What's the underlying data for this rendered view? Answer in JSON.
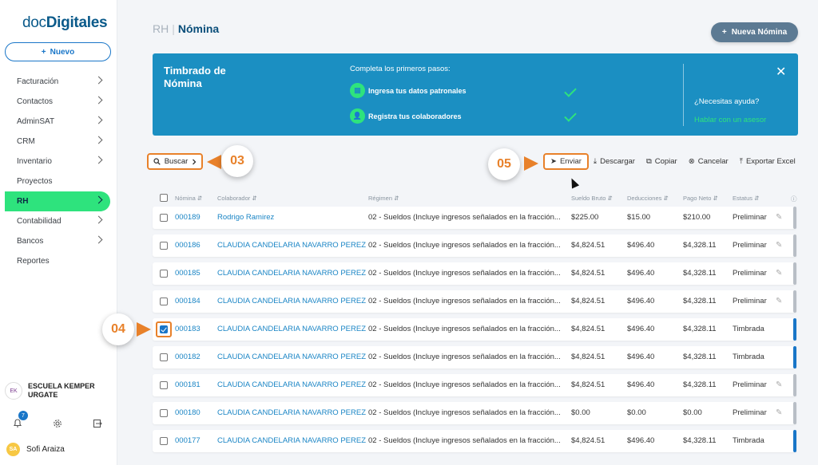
{
  "logo": {
    "part1": "doc",
    "part2": "Digitales"
  },
  "new_button": {
    "icon": "+",
    "label": "Nuevo"
  },
  "nav": [
    {
      "label": "Facturación",
      "chevron": true
    },
    {
      "label": "Contactos",
      "chevron": true
    },
    {
      "label": "AdminSAT",
      "chevron": true
    },
    {
      "label": "CRM",
      "chevron": true
    },
    {
      "label": "Inventario",
      "chevron": true
    },
    {
      "label": "Proyectos",
      "chevron": false
    },
    {
      "label": "RH",
      "chevron": true,
      "active": true
    },
    {
      "label": "Contabilidad",
      "chevron": true
    },
    {
      "label": "Bancos",
      "chevron": true
    },
    {
      "label": "Reportes",
      "chevron": false
    }
  ],
  "company": {
    "avatar": "EK",
    "name_line1": "ESCUELA KEMPER",
    "name_line2": "URGATE"
  },
  "notifications": {
    "count": "7"
  },
  "user": {
    "initials": "SA",
    "name": "Sofi Araiza"
  },
  "breadcrumb": {
    "root": "RH",
    "sep": "|",
    "current": "Nómina"
  },
  "nueva_button": {
    "icon": "+",
    "label": "Nueva Nómina"
  },
  "banner": {
    "title": "Timbrado de Nómina",
    "subtitle": "Completa los primeros pasos:",
    "steps": [
      {
        "label": "Ingresa tus datos patronales",
        "done": true
      },
      {
        "label": "Registra tus colaboradores",
        "done": true
      }
    ],
    "help_question": "¿Necesitas ayuda?",
    "help_link": "Hablar con un asesor",
    "close_icon": "✕"
  },
  "toolbar": {
    "search_label": "Buscar",
    "callout_03": "03",
    "callout_05": "05",
    "callout_04": "04",
    "actions": {
      "enviar": "Enviar",
      "descargar": "Descargar",
      "copiar": "Copiar",
      "cancelar": "Cancelar",
      "exportar": "Exportar Excel"
    }
  },
  "table": {
    "headers": {
      "nomina": "Nómina",
      "colaborador": "Colaborador",
      "regimen": "Régimen",
      "sueldo": "Sueldo Bruto",
      "deducciones": "Deducciones",
      "neto": "Pago Neto",
      "estatus": "Estatus"
    },
    "rows": [
      {
        "id": "000189",
        "colaborador": "Rodrigo Ramirez",
        "regimen": "02 - Sueldos (Incluye ingresos señalados en la fracción...",
        "sueldo": "$225.00",
        "deducciones": "$15.00",
        "neto": "$210.00",
        "estatus": "Preliminar",
        "checked": false
      },
      {
        "id": "000186",
        "colaborador": "CLAUDIA CANDELARIA NAVARRO PEREZ",
        "regimen": "02 - Sueldos (Incluye ingresos señalados en la fracción...",
        "sueldo": "$4,824.51",
        "deducciones": "$496.40",
        "neto": "$4,328.11",
        "estatus": "Preliminar",
        "checked": false
      },
      {
        "id": "000185",
        "colaborador": "CLAUDIA CANDELARIA NAVARRO PEREZ",
        "regimen": "02 - Sueldos (Incluye ingresos señalados en la fracción...",
        "sueldo": "$4,824.51",
        "deducciones": "$496.40",
        "neto": "$4,328.11",
        "estatus": "Preliminar",
        "checked": false
      },
      {
        "id": "000184",
        "colaborador": "CLAUDIA CANDELARIA NAVARRO PEREZ",
        "regimen": "02 - Sueldos (Incluye ingresos señalados en la fracción...",
        "sueldo": "$4,824.51",
        "deducciones": "$496.40",
        "neto": "$4,328.11",
        "estatus": "Preliminar",
        "checked": false
      },
      {
        "id": "000183",
        "colaborador": "CLAUDIA CANDELARIA NAVARRO PEREZ",
        "regimen": "02 - Sueldos (Incluye ingresos señalados en la fracción...",
        "sueldo": "$4,824.51",
        "deducciones": "$496.40",
        "neto": "$4,328.11",
        "estatus": "Timbrada",
        "checked": true
      },
      {
        "id": "000182",
        "colaborador": "CLAUDIA CANDELARIA NAVARRO PEREZ",
        "regimen": "02 - Sueldos (Incluye ingresos señalados en la fracción...",
        "sueldo": "$4,824.51",
        "deducciones": "$496.40",
        "neto": "$4,328.11",
        "estatus": "Timbrada",
        "checked": false
      },
      {
        "id": "000181",
        "colaborador": "CLAUDIA CANDELARIA NAVARRO PEREZ",
        "regimen": "02 - Sueldos (Incluye ingresos señalados en la fracción...",
        "sueldo": "$4,824.51",
        "deducciones": "$496.40",
        "neto": "$4,328.11",
        "estatus": "Preliminar",
        "checked": false
      },
      {
        "id": "000180",
        "colaborador": "CLAUDIA CANDELARIA NAVARRO PEREZ",
        "regimen": "02 - Sueldos (Incluye ingresos señalados en la fracción...",
        "sueldo": "$0.00",
        "deducciones": "$0.00",
        "neto": "$0.00",
        "estatus": "Preliminar",
        "checked": false
      },
      {
        "id": "000177",
        "colaborador": "CLAUDIA CANDELARIA NAVARRO PEREZ",
        "regimen": "02 - Sueldos (Incluye ingresos señalados en la fracción...",
        "sueldo": "$4,824.51",
        "deducciones": "$496.40",
        "neto": "$4,328.11",
        "estatus": "Timbrada",
        "checked": false
      }
    ]
  },
  "colors": {
    "accent": "#2ee37d",
    "primary": "#1976c8",
    "banner": "#1b8fc2",
    "callout": "#e8812a",
    "timbrada_mark": "#1976c8",
    "preliminar_mark": "#b8bec6"
  }
}
